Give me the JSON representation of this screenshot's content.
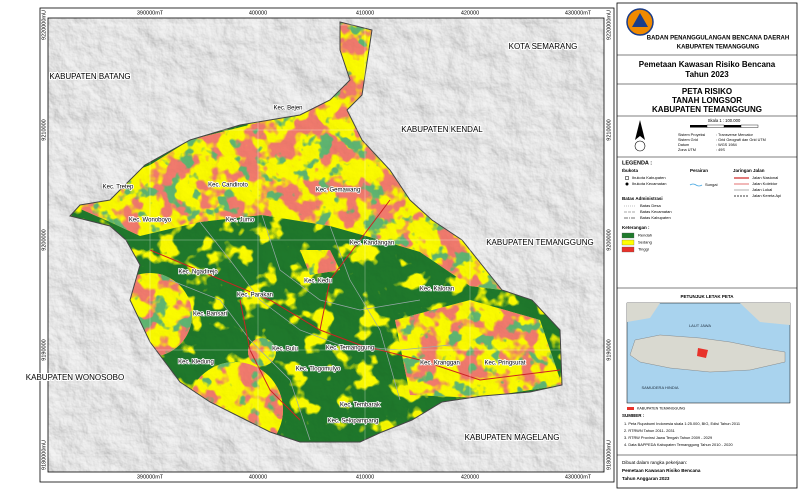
{
  "header": {
    "agency": "BADAN PENANGGULANGAN BENCANA DAERAH",
    "regency": "KABUPATEN TEMANGGUNG",
    "project": "Pemetaan Kawasan Risiko Bencana",
    "year": "Tahun 2023"
  },
  "map_title": [
    "PETA RISIKO",
    "TANAH LONGSOR",
    "KABUPATEN TEMANGGUNG"
  ],
  "scale": "Skala 1 : 100.000",
  "projection": [
    [
      "Sistem Proyeksi",
      ": Transverse Mercator"
    ],
    [
      "Sistem Grid",
      ": Grid Geografi dan Grid UTM"
    ],
    [
      "Datum",
      ": WGS 1984"
    ],
    [
      "Zona UTM",
      ": 49S"
    ]
  ],
  "legend": {
    "title": "LEGENDA :",
    "capitals": {
      "title": "Ibukota",
      "items": [
        "Ibukota Kabupaten",
        "Ibukota Kecamatan"
      ]
    },
    "waters": {
      "title": "Perairan",
      "items": [
        "Sungai"
      ]
    },
    "roads": {
      "title": "Jaringan Jalan",
      "items": [
        "Jalan Nasional",
        "Jalan Kolektor",
        "Jalan Lokal",
        "Jalan Kereta Api"
      ]
    },
    "admin": {
      "title": "Batas Administrasi",
      "items": [
        "Batas Desa",
        "Batas Kecamatan",
        "Batas Kabupaten"
      ]
    },
    "risk": {
      "title": "Keterangan :",
      "items": [
        {
          "label": "Rendah",
          "color": "#1f7a2c"
        },
        {
          "label": "Sedang",
          "color": "#ffff00"
        },
        {
          "label": "Tinggi",
          "color": "#e8322a"
        }
      ]
    }
  },
  "inset": {
    "title": "PETUNJUK LETAK PETA",
    "labels": [
      "LAUT JAWA",
      "SAMUDERA HINDIA"
    ],
    "key": "KABUPATEN TEMANGGUNG"
  },
  "sources": {
    "title": "SUMBER :",
    "items": [
      "1. Peta Rupabumi Indonesia skala 1:25.000, BIG, Edisi Tahun 2011",
      "2. RTRWN Tahun 2011- 2031",
      "3. RTRW Provinsi Jawa Tengah Tahun 2009 - 2029",
      "4. Data BAPPEDA Kabupaten Temanggung Tahun 2010 - 2020"
    ]
  },
  "footer": [
    "Dibuat dalam rangka pekerjaan:",
    "Pemetaan Kawasan Risiko Bencana",
    "Tahun Anggaran 2023"
  ],
  "map": {
    "x_labels": [
      "390000mT",
      "400000",
      "410000",
      "420000",
      "430000mT"
    ],
    "y_labels": [
      "9220000mU",
      "9210000",
      "9200000",
      "9190000",
      "9180000mU"
    ],
    "regions": [
      "KOTA SEMARANG",
      "KABUPATEN BATANG",
      "KABUPATEN KENDAL",
      "KABUPATEN TEMANGGUNG",
      "KABUPATEN WONOSOBO",
      "KABUPATEN MAGELANG"
    ],
    "districts": [
      "Kec. Bejen",
      "Kec. Tretep",
      "Kec. Candiroto",
      "Kec. Gemawang",
      "Kec. Wonoboyo",
      "Kec. Jumo",
      "Kec. Kandangan",
      "Kec. Ngadirejo",
      "Kec. Kedu",
      "Kec. Parakan",
      "Kec. Kaloran",
      "Kec. Bansari",
      "Kec. Bulu",
      "Kec. Temanggung",
      "Kec. Kledung",
      "Kec. Tlogomulyo",
      "Kec. Kranggan",
      "Kec. Pringsurat",
      "Kec. Tembarak",
      "Kec. Selopampang"
    ]
  }
}
